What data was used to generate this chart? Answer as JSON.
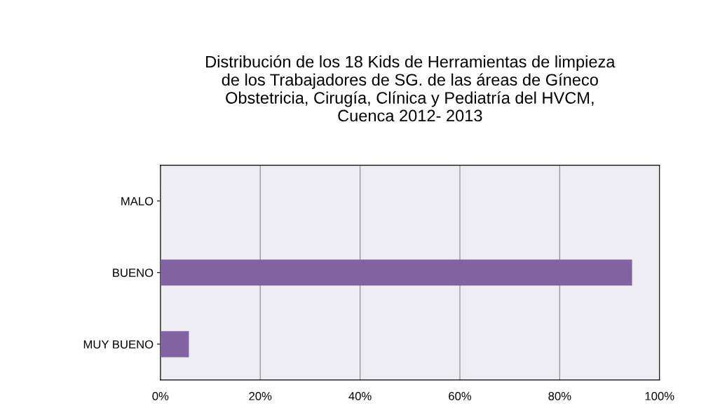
{
  "chart_data": {
    "type": "bar",
    "orientation": "horizontal",
    "title": "Distribución de los 18 Kids de Herramientas de limpieza\nde los Trabajadores de SG. de las áreas de Gíneco\nObstetricia, Cirugía, Clínica y Pediatría del HVCM,\nCuenca 2012- 2013",
    "categories": [
      "MALO",
      "BUENO",
      "MUY BUENO"
    ],
    "values": [
      0,
      94.4,
      5.6
    ],
    "color": "#8064a2",
    "xlim": [
      0,
      100
    ],
    "xticks": [
      {
        "value": 0,
        "label": "0%"
      },
      {
        "value": 20,
        "label": "20%"
      },
      {
        "value": 40,
        "label": "40%"
      },
      {
        "value": 60,
        "label": "60%"
      },
      {
        "value": 80,
        "label": "80%"
      },
      {
        "value": 100,
        "label": "100%"
      }
    ],
    "grid": "x"
  }
}
